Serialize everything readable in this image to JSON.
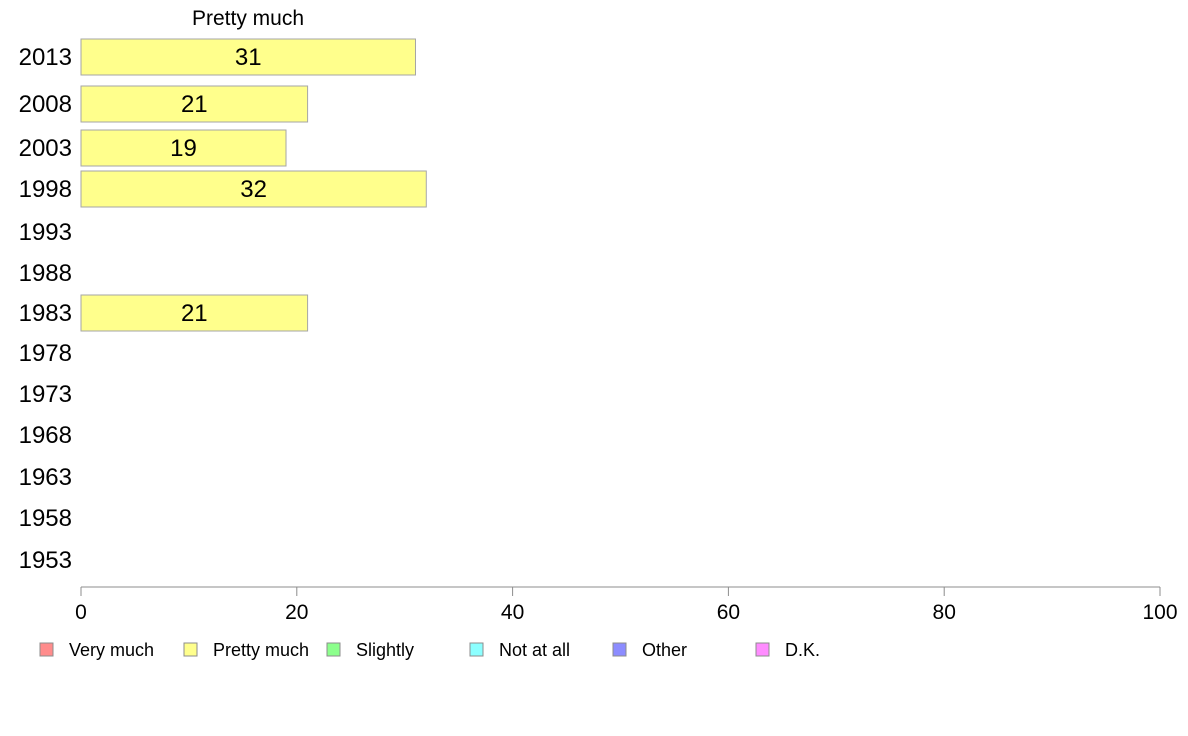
{
  "chart_data": {
    "type": "bar",
    "orientation": "horizontal",
    "title": "Pretty much",
    "categories": [
      "2013",
      "2008",
      "2003",
      "1998",
      "1993",
      "1988",
      "1983",
      "1978",
      "1973",
      "1968",
      "1963",
      "1958",
      "1953"
    ],
    "series": [
      {
        "name": "Pretty much",
        "values": [
          31,
          21,
          19,
          32,
          null,
          null,
          21,
          null,
          null,
          null,
          null,
          null,
          null
        ]
      }
    ],
    "xlim": [
      0,
      100
    ],
    "xticks": [
      0,
      20,
      40,
      60,
      80,
      100
    ],
    "grid": false,
    "legend_position": "bottom",
    "legend": [
      {
        "label": "Very much",
        "color": "#ff8c8c"
      },
      {
        "label": "Pretty much",
        "color": "#ffff8c"
      },
      {
        "label": "Slightly",
        "color": "#8cff8c"
      },
      {
        "label": "Not at all",
        "color": "#8cffff"
      },
      {
        "label": "Other",
        "color": "#8c8cff"
      },
      {
        "label": "D.K.",
        "color": "#ff8cff"
      }
    ],
    "bar_color": "#ffff8c"
  }
}
